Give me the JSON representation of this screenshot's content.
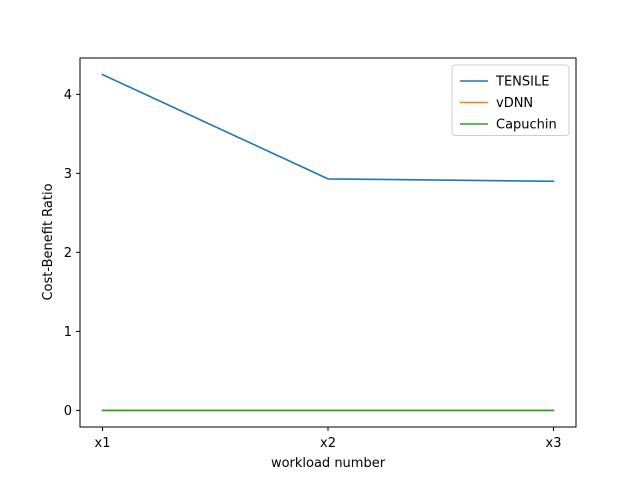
{
  "chart_data": {
    "type": "line",
    "categories": [
      "x1",
      "x2",
      "x3"
    ],
    "xlabel": "workload number",
    "ylabel": "Cost-Benefit Ratio",
    "ylim": [
      -0.21,
      4.46
    ],
    "yticks": [
      0,
      1,
      2,
      3,
      4
    ],
    "grid": false,
    "legend_position": "top-right",
    "series": [
      {
        "name": "TENSILE",
        "color": "#1f77b4",
        "values": [
          4.25,
          2.93,
          2.9
        ]
      },
      {
        "name": "vDNN",
        "color": "#ff7f0e",
        "values": [
          0.0,
          0.0,
          0.0
        ]
      },
      {
        "name": "Capuchin",
        "color": "#2ca02c",
        "values": [
          0.0,
          0.0,
          0.0
        ]
      }
    ]
  }
}
